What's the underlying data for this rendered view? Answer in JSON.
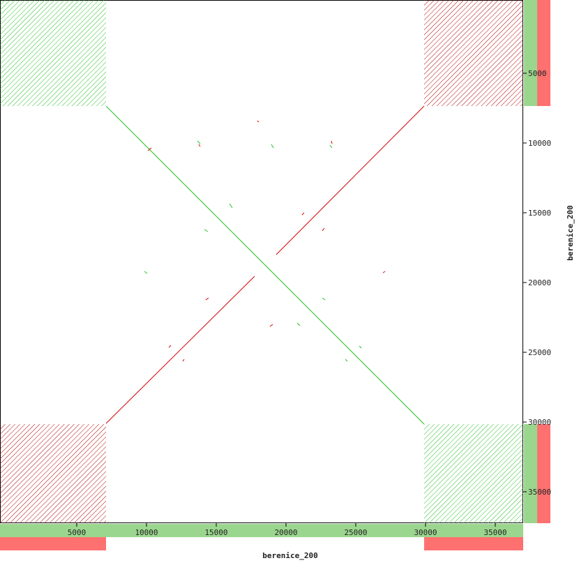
{
  "chart_data": {
    "type": "dotplot",
    "x_label": "berenice_200",
    "y_label": "berenice_200",
    "xlim": [
      -500,
      37000
    ],
    "ylim": [
      -250,
      37250
    ],
    "y_reversed": true,
    "xticks": [
      5000,
      10000,
      15000,
      20000,
      25000,
      30000,
      35000
    ],
    "yticks": [
      5000,
      10000,
      15000,
      20000,
      25000,
      30000,
      35000
    ],
    "forward_color": "#22c022",
    "reverse_color": "#d40000",
    "blocks": [
      {
        "x": [
          -500,
          7100
        ],
        "y": [
          -250,
          7350
        ],
        "strand": "forward"
      },
      {
        "x": [
          29900,
          37000
        ],
        "y": [
          -250,
          7350
        ],
        "strand": "reverse"
      },
      {
        "x": [
          -500,
          7100
        ],
        "y": [
          30150,
          37250
        ],
        "strand": "reverse"
      },
      {
        "x": [
          29900,
          37000
        ],
        "y": [
          30150,
          37250
        ],
        "strand": "forward"
      }
    ],
    "segments": [
      {
        "x": [
          7100,
          29900
        ],
        "y": [
          7350,
          30150
        ],
        "strand": "forward"
      },
      {
        "x": [
          7100,
          17750
        ],
        "y": [
          30100,
          19550
        ],
        "strand": "reverse"
      },
      {
        "x": [
          19300,
          29900
        ],
        "y": [
          18000,
          7350
        ],
        "strand": "reverse"
      },
      {
        "x": [
          17950,
          18050
        ],
        "y": [
          8400,
          8500
        ],
        "strand": "reverse"
      },
      {
        "x": [
          18950,
          19100
        ],
        "y": [
          10100,
          10350
        ],
        "strand": "forward"
      },
      {
        "x": [
          13750,
          13850
        ],
        "y": [
          10100,
          10250
        ],
        "strand": "reverse"
      },
      {
        "x": [
          13650,
          13850
        ],
        "y": [
          9850,
          10050
        ],
        "strand": "forward"
      },
      {
        "x": [
          23150,
          23300
        ],
        "y": [
          10150,
          10350
        ],
        "strand": "forward"
      },
      {
        "x": [
          23250,
          23300
        ],
        "y": [
          9850,
          10050
        ],
        "strand": "reverse"
      },
      {
        "x": [
          10100,
          10350
        ],
        "y": [
          10550,
          10350
        ],
        "strand": "reverse"
      },
      {
        "x": [
          15950,
          16150
        ],
        "y": [
          14350,
          14650
        ],
        "strand": "forward"
      },
      {
        "x": [
          21150,
          21300
        ],
        "y": [
          15150,
          15000
        ],
        "strand": "reverse"
      },
      {
        "x": [
          22600,
          22750
        ],
        "y": [
          16300,
          16100
        ],
        "strand": "reverse"
      },
      {
        "x": [
          14150,
          14400
        ],
        "y": [
          16200,
          16350
        ],
        "strand": "forward"
      },
      {
        "x": [
          9850,
          10050
        ],
        "y": [
          19200,
          19350
        ],
        "strand": "forward"
      },
      {
        "x": [
          26950,
          27100
        ],
        "y": [
          19300,
          19200
        ],
        "strand": "reverse"
      },
      {
        "x": [
          22600,
          22800
        ],
        "y": [
          21100,
          21250
        ],
        "strand": "forward"
      },
      {
        "x": [
          14250,
          14450
        ],
        "y": [
          21250,
          21100
        ],
        "strand": "reverse"
      },
      {
        "x": [
          18850,
          19050
        ],
        "y": [
          23150,
          23000
        ],
        "strand": "reverse"
      },
      {
        "x": [
          20800,
          21000
        ],
        "y": [
          22900,
          23100
        ],
        "strand": "forward"
      },
      {
        "x": [
          11600,
          11750
        ],
        "y": [
          24650,
          24500
        ],
        "strand": "reverse"
      },
      {
        "x": [
          25250,
          25400
        ],
        "y": [
          24550,
          24700
        ],
        "strand": "forward"
      },
      {
        "x": [
          12600,
          12700
        ],
        "y": [
          25650,
          25500
        ],
        "strand": "reverse"
      },
      {
        "x": [
          24250,
          24400
        ],
        "y": [
          25500,
          25650
        ],
        "strand": "forward"
      }
    ],
    "x_tracks": [
      {
        "range": [
          -500,
          37000
        ],
        "strand": "forward"
      },
      {
        "range": [
          -500,
          7100
        ],
        "strand": "reverse"
      },
      {
        "range": [
          29900,
          37000
        ],
        "strand": "reverse"
      }
    ],
    "y_tracks": [
      {
        "range": [
          -250,
          7350
        ],
        "strand": "forward"
      },
      {
        "range": [
          30150,
          37250
        ],
        "strand": "forward"
      },
      {
        "range": [
          -250,
          7350
        ],
        "strand": "reverse"
      },
      {
        "range": [
          30150,
          37250
        ],
        "strand": "reverse"
      }
    ]
  }
}
